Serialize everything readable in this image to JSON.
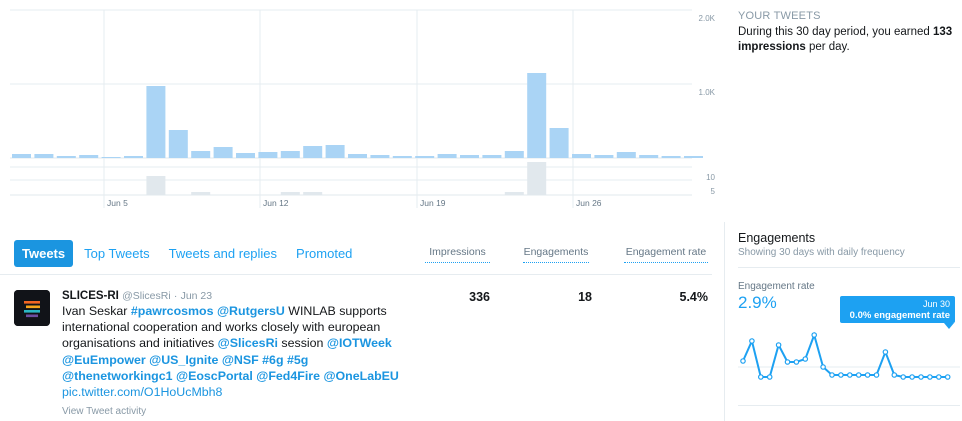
{
  "impressions_chart": {
    "y_tick_labels": [
      "2.0K",
      "1.0K"
    ],
    "lower_tick_labels": [
      "10",
      "5"
    ],
    "x_tick_labels": [
      "Jun 5",
      "Jun 12",
      "Jun 19",
      "Jun 26"
    ],
    "bar_color": "#aad4f5",
    "lower_bar_color": "#e1e8ed"
  },
  "summary": {
    "title": "YOUR TWEETS",
    "text_before": "During this 30 day period, you earned",
    "value": "133",
    "text_bold": "impressions",
    "text_after": "per day."
  },
  "tabs": [
    {
      "label": "Tweets",
      "active": true
    },
    {
      "label": "Top Tweets",
      "active": false
    },
    {
      "label": "Tweets and replies",
      "active": false
    },
    {
      "label": "Promoted",
      "active": false
    }
  ],
  "columns": {
    "impressions": "Impressions",
    "engagements": "Engagements",
    "engagement_rate": "Engagement rate"
  },
  "tweet": {
    "name": "SLICES-RI",
    "handle": "@SlicesRi",
    "date": "Jun 23",
    "impressions": "336",
    "engagements": "18",
    "engagement_rate": "5.4%",
    "activity_link": "View Tweet activity",
    "parts": {
      "p1": "Ivan Seskar ",
      "h1": "#pawrcosmos",
      "p2": " ",
      "m1": "@RutgersU",
      "p3": " WINLAB supports international cooperation and works closely with european organisations and initiatives ",
      "m2": "@SlicesRi",
      "p4": " session ",
      "m3": "@IOTWeek",
      "p5": " ",
      "m4": "@EuEmpower",
      "p6": " ",
      "m5": "@US_Ignite",
      "p7": " ",
      "m6": "@NSF",
      "p8": " ",
      "h2": "#6g",
      "p9": " ",
      "h3": "#5g",
      "p10": " ",
      "m7": "@thenetworkingc1",
      "p11": " ",
      "m8": "@EoscPortal",
      "p12": " ",
      "m9": "@Fed4Fire",
      "p13": " ",
      "m10": "@OneLabEU",
      "p14": " ",
      "link": "pic.twitter.com/O1HoUcMbh8"
    }
  },
  "engagements": {
    "title": "Engagements",
    "subtitle": "Showing 30 days with daily frequency",
    "rate_label": "Engagement rate",
    "rate_value": "2.9%",
    "tooltip_date": "Jun 30",
    "tooltip_value": "0.0% engagement rate",
    "line_color": "#1da1f2"
  }
}
